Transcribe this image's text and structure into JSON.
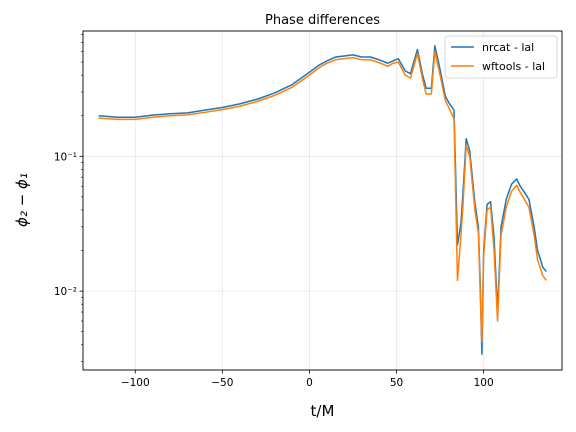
{
  "chart_data": {
    "type": "line",
    "title": "Phase differences",
    "xlabel": "t/M",
    "ylabel": "ϕ₂ − ϕ₁",
    "yscale": "log",
    "xlim": [
      -130,
      145
    ],
    "ylim": [
      0.0026,
      0.85
    ],
    "xticks": [
      -100,
      -50,
      0,
      50,
      100
    ],
    "xtick_labels": [
      "−100",
      "−50",
      "0",
      "50",
      "100"
    ],
    "yticks": [
      0.1,
      0.01
    ],
    "ytick_labels": [
      "10⁻¹",
      "10⁻²"
    ],
    "grid": true,
    "legend_position": "top-right",
    "series": [
      {
        "name": "nrcat - lal",
        "color": "#1f77b4",
        "x": [
          -121,
          -110,
          -100,
          -90,
          -80,
          -70,
          -60,
          -50,
          -40,
          -30,
          -20,
          -10,
          0,
          5,
          10,
          15,
          20,
          25,
          30,
          35,
          40,
          45,
          48,
          51,
          55,
          58,
          62,
          65,
          67,
          70,
          72,
          75,
          78,
          80,
          83,
          85,
          87,
          88,
          90,
          92,
          95,
          97,
          98,
          99,
          100,
          102,
          104,
          106,
          108,
          110,
          113,
          116,
          119,
          121,
          123,
          126,
          129,
          131,
          134,
          136
        ],
        "y": [
          0.2,
          0.195,
          0.195,
          0.202,
          0.207,
          0.21,
          0.22,
          0.23,
          0.245,
          0.265,
          0.295,
          0.34,
          0.42,
          0.47,
          0.51,
          0.545,
          0.555,
          0.565,
          0.545,
          0.545,
          0.52,
          0.49,
          0.51,
          0.53,
          0.43,
          0.41,
          0.62,
          0.4,
          0.32,
          0.32,
          0.66,
          0.44,
          0.28,
          0.25,
          0.22,
          0.022,
          0.032,
          0.05,
          0.135,
          0.11,
          0.045,
          0.03,
          0.012,
          0.0034,
          0.02,
          0.044,
          0.046,
          0.025,
          0.007,
          0.03,
          0.048,
          0.062,
          0.068,
          0.06,
          0.055,
          0.048,
          0.03,
          0.02,
          0.015,
          0.014
        ]
      },
      {
        "name": "wftools - lal",
        "color": "#ff7f0e",
        "x": [
          -121,
          -110,
          -100,
          -90,
          -80,
          -70,
          -60,
          -50,
          -40,
          -30,
          -20,
          -10,
          0,
          5,
          10,
          15,
          20,
          25,
          30,
          35,
          40,
          45,
          48,
          51,
          55,
          58,
          62,
          65,
          67,
          70,
          72,
          75,
          78,
          80,
          83,
          85,
          87,
          88,
          90,
          92,
          95,
          97,
          98,
          99,
          100,
          102,
          104,
          106,
          108,
          110,
          113,
          116,
          119,
          121,
          123,
          126,
          129,
          131,
          134,
          136
        ],
        "y": [
          0.192,
          0.188,
          0.188,
          0.195,
          0.2,
          0.203,
          0.212,
          0.222,
          0.235,
          0.255,
          0.283,
          0.325,
          0.4,
          0.45,
          0.49,
          0.52,
          0.53,
          0.54,
          0.52,
          0.52,
          0.495,
          0.465,
          0.49,
          0.5,
          0.4,
          0.38,
          0.58,
          0.37,
          0.29,
          0.29,
          0.6,
          0.4,
          0.26,
          0.23,
          0.19,
          0.012,
          0.026,
          0.04,
          0.12,
          0.1,
          0.04,
          0.027,
          0.01,
          0.0042,
          0.018,
          0.04,
          0.042,
          0.02,
          0.006,
          0.026,
          0.042,
          0.055,
          0.061,
          0.054,
          0.049,
          0.042,
          0.026,
          0.017,
          0.013,
          0.012
        ]
      }
    ]
  }
}
